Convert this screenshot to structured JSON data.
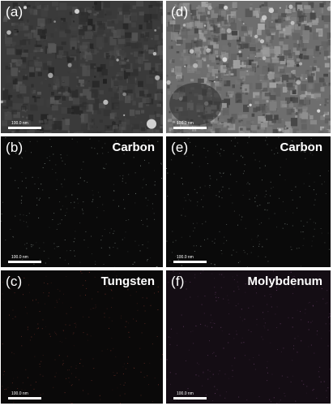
{
  "panels": [
    {
      "id": "a",
      "label": "(a)",
      "element": "",
      "scale": "100.0 nm",
      "style": "sem-dark",
      "color": "#3a3a3a"
    },
    {
      "id": "d",
      "label": "(d)",
      "element": "",
      "scale": "100.0 nm",
      "style": "sem-bright",
      "color": "#6e6e6e"
    },
    {
      "id": "b",
      "label": "(b)",
      "element": "Carbon",
      "scale": "100.0 nm",
      "style": "map",
      "color": "#0a0a0a",
      "dot_color": "#9aa8a0"
    },
    {
      "id": "e",
      "label": "(e)",
      "element": "Carbon",
      "scale": "100.0 nm",
      "style": "map",
      "color": "#0a0a0a",
      "dot_color": "#9aa8a0"
    },
    {
      "id": "c",
      "label": "(c)",
      "element": "Tungsten",
      "scale": "100.0 nm",
      "style": "map",
      "color": "#0a0909",
      "dot_color": "#8a3a30"
    },
    {
      "id": "f",
      "label": "(f)",
      "element": "Molybdenum",
      "scale": "100.0 nm",
      "style": "map",
      "color": "#140d14",
      "dot_color": "#7a4a7a"
    }
  ]
}
